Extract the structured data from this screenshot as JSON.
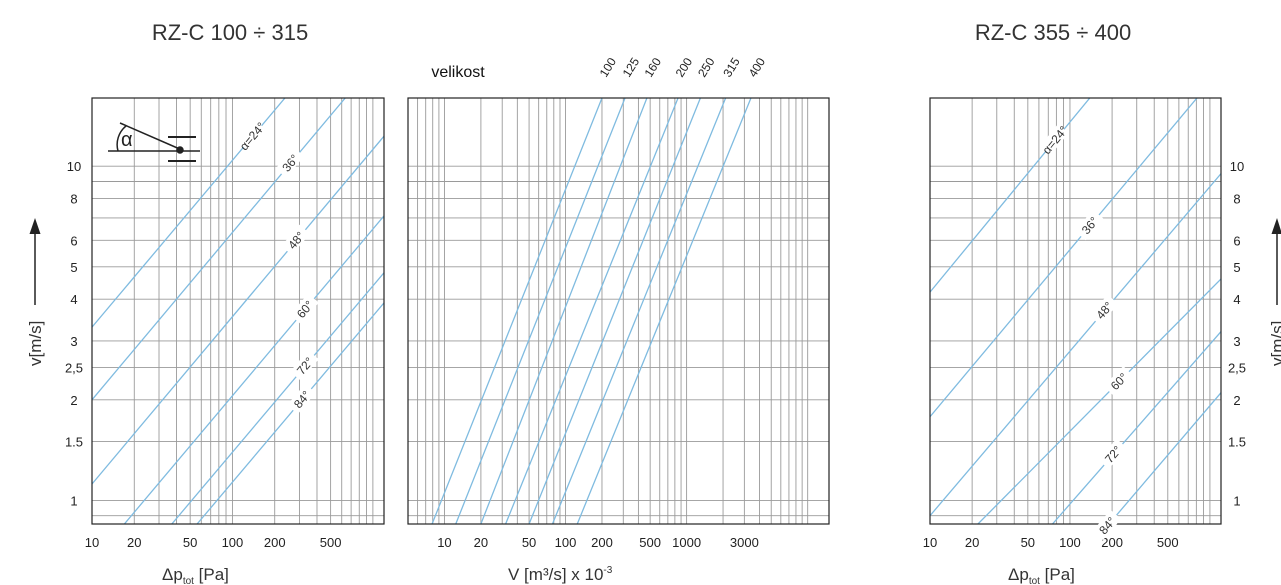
{
  "chart_data": [
    {
      "type": "line",
      "title": "RZ-C 100 ÷ 315",
      "xlabel": "Δp",
      "xlabel_sub": "tot",
      "xlabel_unit": " [Pa]",
      "ylabel": "v[m/s]",
      "x_scale": "log",
      "y_scale": "log",
      "xlim": [
        10,
        1200
      ],
      "ylim": [
        0.85,
        16
      ],
      "x_ticks": [
        10,
        20,
        50,
        100,
        200,
        500
      ],
      "y_ticks": [
        1,
        1.5,
        2,
        2.5,
        3,
        4,
        5,
        6,
        8,
        10
      ],
      "y_tick_labels": [
        "1",
        "1.5",
        "2",
        "2,5",
        "3",
        "4",
        "5",
        "6",
        "8",
        "10"
      ],
      "grid": true,
      "series": [
        {
          "name": "α=24°",
          "x": [
            10,
            1200
          ],
          "y": [
            3.3,
            36
          ]
        },
        {
          "name": "36°",
          "x": [
            10,
            1200
          ],
          "y": [
            2.0,
            22
          ]
        },
        {
          "name": "48°",
          "x": [
            10,
            1200
          ],
          "y": [
            1.12,
            12.3
          ]
        },
        {
          "name": "60°",
          "x": [
            17,
            1200
          ],
          "y": [
            0.85,
            7.1
          ]
        },
        {
          "name": "72°",
          "x": [
            37,
            1200
          ],
          "y": [
            0.85,
            4.8
          ]
        },
        {
          "name": "84°",
          "x": [
            56,
            1200
          ],
          "y": [
            0.85,
            3.9
          ]
        }
      ]
    },
    {
      "type": "line",
      "title": "velikost",
      "xlabel": "V [m³/s] x 10",
      "xlabel_sup": "-3",
      "x_scale": "log",
      "y_scale": "log",
      "xlim": [
        5,
        15000
      ],
      "ylim": [
        0.85,
        16
      ],
      "x_ticks": [
        10,
        20,
        50,
        100,
        200,
        500,
        1000,
        3000
      ],
      "x_tick_labels": [
        "10",
        "20",
        "50",
        "100",
        "200",
        "500",
        "1000",
        "3000"
      ],
      "grid": true,
      "series": [
        {
          "name": "100",
          "x": [
            7.9,
            200
          ],
          "y": [
            0.85,
            16
          ]
        },
        {
          "name": "125",
          "x": [
            12.4,
            310
          ],
          "y": [
            0.85,
            16
          ]
        },
        {
          "name": "160",
          "x": [
            20,
            470
          ],
          "y": [
            0.85,
            16
          ]
        },
        {
          "name": "200",
          "x": [
            32,
            850
          ],
          "y": [
            0.85,
            16
          ]
        },
        {
          "name": "250",
          "x": [
            50,
            1300
          ],
          "y": [
            0.85,
            16
          ]
        },
        {
          "name": "315",
          "x": [
            78,
            2100
          ],
          "y": [
            0.85,
            16
          ]
        },
        {
          "name": "400",
          "x": [
            125,
            3400
          ],
          "y": [
            0.85,
            16
          ]
        }
      ]
    },
    {
      "type": "line",
      "title": "RZ-C 355 ÷ 400",
      "xlabel": "Δp",
      "xlabel_sub": "tot",
      "xlabel_unit": " [Pa]",
      "ylabel": "v[m/s]",
      "x_scale": "log",
      "y_scale": "log",
      "xlim": [
        10,
        1200
      ],
      "ylim": [
        0.85,
        16
      ],
      "x_ticks": [
        10,
        20,
        50,
        100,
        200,
        500
      ],
      "y_ticks": [
        1,
        1.5,
        2,
        2.5,
        3,
        4,
        5,
        6,
        8,
        10
      ],
      "y_tick_labels": [
        "1",
        "1.5",
        "2",
        "2,5",
        "3",
        "4",
        "5",
        "6",
        "8",
        "10"
      ],
      "grid": true,
      "series": [
        {
          "name": "α=24°",
          "x": [
            10,
            1200
          ],
          "y": [
            4.2,
            48
          ]
        },
        {
          "name": "36°",
          "x": [
            10,
            1200
          ],
          "y": [
            1.78,
            19.5
          ]
        },
        {
          "name": "48°",
          "x": [
            10,
            1200
          ],
          "y": [
            0.9,
            9.5
          ]
        },
        {
          "name": "60°",
          "x": [
            22,
            1200
          ],
          "y": [
            0.85,
            4.6
          ]
        },
        {
          "name": "72°",
          "x": [
            75,
            1200
          ],
          "y": [
            0.85,
            3.2
          ]
        },
        {
          "name": "84°",
          "x": [
            190,
            1200
          ],
          "y": [
            0.85,
            2.1
          ]
        }
      ]
    }
  ],
  "colors": {
    "curve": "#7fbbe0",
    "grid": "#9a9a9a",
    "frame": "#222222"
  },
  "icons": {
    "damper": "damper-angle-icon",
    "up_arrow": "up-arrow-icon"
  },
  "angle_symbol": "α"
}
